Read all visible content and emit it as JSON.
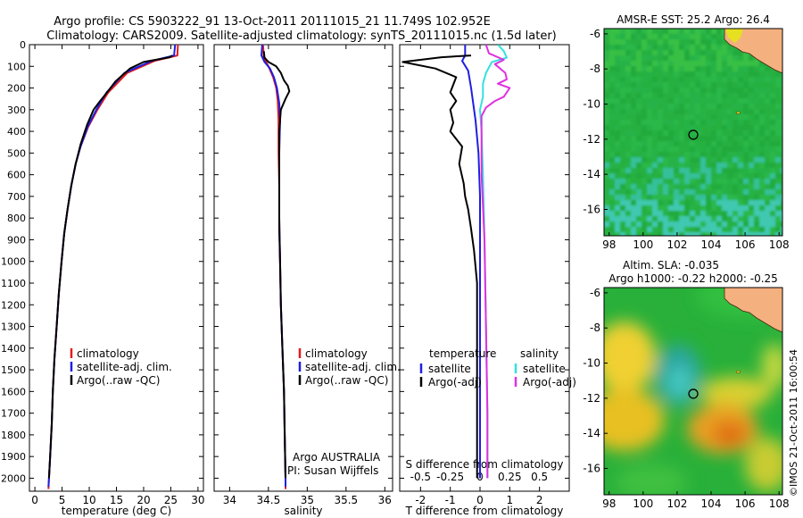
{
  "title": {
    "line1": "Argo profile: CS 5903222_91 13-Oct-2011 20111015_21 11.749S 102.952E",
    "line2": "Climatology: CARS2009. Satellite-adjusted climatology: synTS_20111015.nc (1.5d later)"
  },
  "footer_text": "©IMOS 21-Oct-2011 16:00:54",
  "colors": {
    "climatology": "#e41a1c",
    "satellite": "#1f1fe0",
    "argo": "#000000",
    "sal_satellite": "#33e0e0",
    "sal_argo": "#e030e0"
  },
  "chart_data": [
    {
      "type": "line",
      "id": "temperature-profile",
      "xlabel": "temperature (deg C)",
      "xlim": [
        -1,
        31
      ],
      "xticks": [
        0,
        5,
        10,
        15,
        20,
        25,
        30
      ],
      "ylim": [
        2060,
        0
      ],
      "yticks": [
        0,
        100,
        200,
        300,
        400,
        500,
        600,
        700,
        800,
        900,
        1000,
        1100,
        1200,
        1300,
        1400,
        1500,
        1600,
        1700,
        1800,
        1900,
        2000
      ],
      "legend": {
        "placement": "lower-center",
        "entries": [
          "climatology",
          "satellite-adj. clim.",
          "Argo(..raw -QC)"
        ]
      },
      "series": [
        {
          "name": "climatology",
          "color_key": "climatology",
          "points": [
            [
              26.3,
              0
            ],
            [
              26.2,
              50
            ],
            [
              22.0,
              75
            ],
            [
              17.0,
              130
            ],
            [
              13.5,
              220
            ],
            [
              11.5,
              300
            ],
            [
              9.8,
              380
            ],
            [
              8.4,
              470
            ],
            [
              7.5,
              550
            ],
            [
              6.7,
              650
            ],
            [
              6.0,
              760
            ],
            [
              5.4,
              870
            ],
            [
              4.9,
              1000
            ],
            [
              4.4,
              1150
            ],
            [
              4.0,
              1300
            ],
            [
              3.6,
              1450
            ],
            [
              3.3,
              1600
            ],
            [
              3.1,
              1750
            ],
            [
              2.8,
              1900
            ],
            [
              2.6,
              2000
            ],
            [
              2.5,
              2050
            ]
          ]
        },
        {
          "name": "satellite-adj. clim.",
          "color_key": "satellite",
          "points": [
            [
              25.8,
              0
            ],
            [
              25.6,
              50
            ],
            [
              21.5,
              75
            ],
            [
              16.5,
              130
            ],
            [
              13.2,
              220
            ],
            [
              11.3,
              300
            ],
            [
              9.7,
              380
            ],
            [
              8.4,
              470
            ],
            [
              7.5,
              550
            ],
            [
              6.7,
              650
            ],
            [
              6.0,
              760
            ],
            [
              5.4,
              870
            ],
            [
              4.9,
              1000
            ],
            [
              4.4,
              1150
            ],
            [
              4.0,
              1300
            ],
            [
              3.6,
              1450
            ],
            [
              3.3,
              1600
            ],
            [
              3.1,
              1750
            ],
            [
              2.8,
              1900
            ],
            [
              2.6,
              2000
            ],
            [
              2.5,
              2040
            ]
          ]
        },
        {
          "name": "Argo(..raw -QC)",
          "color_key": "argo",
          "points": [
            [
              25.3,
              50
            ],
            [
              24.8,
              58
            ],
            [
              20.0,
              80
            ],
            [
              17.5,
              110
            ],
            [
              14.8,
              170
            ],
            [
              13.3,
              220
            ],
            [
              12.0,
              260
            ],
            [
              10.8,
              300
            ],
            [
              9.6,
              370
            ],
            [
              8.4,
              460
            ],
            [
              7.5,
              550
            ],
            [
              6.7,
              650
            ],
            [
              6.0,
              760
            ],
            [
              5.4,
              870
            ],
            [
              4.9,
              1000
            ],
            [
              4.4,
              1150
            ],
            [
              4.0,
              1300
            ],
            [
              3.6,
              1450
            ],
            [
              3.3,
              1600
            ],
            [
              3.1,
              1750
            ],
            [
              2.8,
              1900
            ],
            [
              2.6,
              2000
            ]
          ]
        }
      ]
    },
    {
      "type": "line",
      "id": "salinity-profile",
      "xlabel": "salinity",
      "xlim": [
        33.8,
        36.1
      ],
      "xticks": [
        34,
        34.5,
        35,
        35.5,
        36
      ],
      "ylim": [
        2060,
        0
      ],
      "legend": {
        "placement": "lower-right",
        "entries": [
          "climatology",
          "satellite-adj. clim.",
          "Argo(..raw -QC)"
        ]
      },
      "annotation": {
        "line1": "Argo AUSTRALIA",
        "line2": "PI: Susan Wijffels"
      },
      "series": [
        {
          "name": "climatology",
          "color_key": "climatology",
          "points": [
            [
              34.43,
              0
            ],
            [
              34.44,
              60
            ],
            [
              34.5,
              100
            ],
            [
              34.56,
              150
            ],
            [
              34.6,
              200
            ],
            [
              34.62,
              260
            ],
            [
              34.63,
              350
            ],
            [
              34.63,
              500
            ],
            [
              34.64,
              650
            ],
            [
              34.64,
              800
            ],
            [
              34.65,
              1000
            ],
            [
              34.66,
              1200
            ],
            [
              34.68,
              1400
            ],
            [
              34.7,
              1600
            ],
            [
              34.71,
              1800
            ],
            [
              34.72,
              2000
            ],
            [
              34.72,
              2050
            ]
          ]
        },
        {
          "name": "satellite-adj. clim.",
          "color_key": "satellite",
          "points": [
            [
              34.42,
              0
            ],
            [
              34.41,
              50
            ],
            [
              34.45,
              80
            ],
            [
              34.52,
              110
            ],
            [
              34.57,
              150
            ],
            [
              34.61,
              200
            ],
            [
              34.64,
              270
            ],
            [
              34.65,
              350
            ],
            [
              34.64,
              500
            ],
            [
              34.64,
              650
            ],
            [
              34.64,
              800
            ],
            [
              34.65,
              1000
            ],
            [
              34.66,
              1200
            ],
            [
              34.68,
              1400
            ],
            [
              34.7,
              1600
            ],
            [
              34.71,
              1800
            ],
            [
              34.72,
              2000
            ],
            [
              34.72,
              2040
            ]
          ]
        },
        {
          "name": "Argo(..raw -QC)",
          "color_key": "argo",
          "points": [
            [
              34.44,
              30
            ],
            [
              34.45,
              60
            ],
            [
              34.5,
              80
            ],
            [
              34.6,
              100
            ],
            [
              34.66,
              130
            ],
            [
              34.7,
              165
            ],
            [
              34.75,
              190
            ],
            [
              34.77,
              215
            ],
            [
              34.72,
              250
            ],
            [
              34.66,
              300
            ],
            [
              34.64,
              400
            ],
            [
              34.64,
              550
            ],
            [
              34.64,
              700
            ],
            [
              34.64,
              850
            ],
            [
              34.65,
              1000
            ],
            [
              34.66,
              1200
            ],
            [
              34.68,
              1400
            ],
            [
              34.7,
              1600
            ],
            [
              34.71,
              1800
            ],
            [
              34.72,
              2000
            ]
          ]
        }
      ]
    },
    {
      "type": "line",
      "id": "difference-profile",
      "xlabel": "T difference from climatology",
      "xlabel_top": "S difference from climatology",
      "xlim": [
        -2.7,
        3.0
      ],
      "xticks": [
        -2,
        -1,
        0,
        1,
        2
      ],
      "xticks_top": [
        {
          "label": "-0.5",
          "at": -2
        },
        {
          "label": "-0.25",
          "at": -1
        },
        {
          "label": "0",
          "at": 0
        },
        {
          "label": "0.25",
          "at": 1
        },
        {
          "label": "0.5",
          "at": 2
        }
      ],
      "ylim": [
        2060,
        0
      ],
      "legend": {
        "placement": "lower-center",
        "columns": [
          {
            "header": "temperature",
            "entries": [
              "satellite",
              "Argo(-adj)"
            ]
          },
          {
            "header": "salinity",
            "entries": [
              "satellite",
              "Argo(-adj)"
            ]
          }
        ]
      },
      "series": [
        {
          "name": "temperature satellite",
          "color_key": "satellite",
          "points": [
            [
              -0.5,
              0
            ],
            [
              -0.5,
              50
            ],
            [
              -0.6,
              75
            ],
            [
              -0.4,
              120
            ],
            [
              -0.3,
              200
            ],
            [
              -0.15,
              350
            ],
            [
              -0.05,
              500
            ],
            [
              0,
              700
            ],
            [
              0,
              1000
            ],
            [
              0,
              1500
            ],
            [
              0,
              2000
            ]
          ]
        },
        {
          "name": "temperature Argo(-adj)",
          "color_key": "argo",
          "points": [
            [
              -0.3,
              50
            ],
            [
              -1.3,
              58
            ],
            [
              -2.6,
              80
            ],
            [
              -1.5,
              110
            ],
            [
              -0.8,
              150
            ],
            [
              -1.0,
              220
            ],
            [
              -0.8,
              260
            ],
            [
              -1.0,
              300
            ],
            [
              -0.9,
              360
            ],
            [
              -1.0,
              400
            ],
            [
              -0.6,
              470
            ],
            [
              -0.7,
              550
            ],
            [
              -0.55,
              640
            ],
            [
              -0.5,
              700
            ],
            [
              -0.4,
              760
            ],
            [
              -0.3,
              850
            ],
            [
              -0.2,
              950
            ],
            [
              -0.1,
              1100
            ],
            [
              -0.1,
              1250
            ],
            [
              -0.1,
              1400
            ],
            [
              -0.1,
              1600
            ],
            [
              -0.1,
              1800
            ],
            [
              -0.1,
              2000
            ]
          ]
        },
        {
          "name": "salinity satellite",
          "color_key": "sal_satellite",
          "points": [
            [
              0.6,
              0
            ],
            [
              0.8,
              30
            ],
            [
              0.9,
              60
            ],
            [
              0.4,
              80
            ],
            [
              0.2,
              130
            ],
            [
              0.1,
              180
            ],
            [
              0.1,
              240
            ],
            [
              0.0,
              300
            ],
            [
              0.05,
              400
            ],
            [
              0.1,
              600
            ],
            [
              0.15,
              900
            ],
            [
              0.2,
              1300
            ],
            [
              0.25,
              1700
            ],
            [
              0.25,
              2000
            ]
          ]
        },
        {
          "name": "salinity Argo(-adj)",
          "color_key": "sal_argo",
          "points": [
            [
              0.2,
              0
            ],
            [
              0.3,
              40
            ],
            [
              0.8,
              70
            ],
            [
              0.5,
              90
            ],
            [
              0.85,
              130
            ],
            [
              0.9,
              160
            ],
            [
              0.6,
              180
            ],
            [
              1.0,
              200
            ],
            [
              0.8,
              240
            ],
            [
              0.5,
              260
            ],
            [
              0.2,
              290
            ],
            [
              0.05,
              330
            ],
            [
              0.05,
              400
            ],
            [
              0.05,
              600
            ],
            [
              0.15,
              900
            ],
            [
              0.2,
              1300
            ],
            [
              0.25,
              1700
            ],
            [
              0.25,
              2000
            ]
          ]
        }
      ]
    },
    {
      "type": "heatmap",
      "id": "sst-map",
      "title": "AMSR-E SST: 25.2  Argo: 26.4",
      "xlim": [
        97.7,
        108.2
      ],
      "ylim": [
        -17.5,
        -5.7
      ],
      "xticks": [
        98,
        100,
        102,
        104,
        106,
        108
      ],
      "yticks": [
        -6,
        -8,
        -10,
        -12,
        -14,
        -16
      ],
      "marker": [
        102.952,
        -11.749
      ],
      "island": [
        105.6,
        -10.5
      ]
    },
    {
      "type": "heatmap",
      "id": "sla-map",
      "title_line1": "Altim. SLA: -0.035",
      "title_line2": "Argo h1000: -0.22 h2000: -0.25",
      "xlim": [
        97.7,
        108.2
      ],
      "ylim": [
        -17.5,
        -5.7
      ],
      "xticks": [
        98,
        100,
        102,
        104,
        106,
        108
      ],
      "yticks": [
        -6,
        -8,
        -10,
        -12,
        -14,
        -16
      ],
      "marker": [
        102.952,
        -11.749
      ],
      "island": [
        105.6,
        -10.5
      ]
    }
  ]
}
